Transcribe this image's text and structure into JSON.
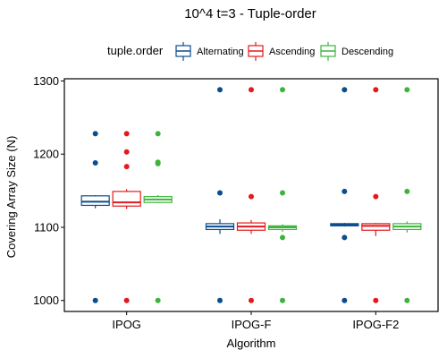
{
  "chart_data": {
    "type": "box",
    "title": "10^4 t=3 - Tuple-order",
    "xlabel": "Algorithm",
    "ylabel": "Covering Array Size (N)",
    "ylim": [
      985,
      1303
    ],
    "yticks": [
      1000,
      1100,
      1200,
      1300
    ],
    "categories": [
      "IPOG",
      "IPOG-F",
      "IPOG-F2"
    ],
    "legend": {
      "title": "tuple.order",
      "position": "top"
    },
    "grid": false,
    "series": [
      {
        "name": "Alternating",
        "color": "#0b4c8c",
        "boxes": [
          {
            "category": "IPOG",
            "whisker_low": 1126,
            "q1": 1130,
            "median": 1135,
            "q3": 1143,
            "whisker_high": 1144,
            "outliers": [
              1228,
              1188,
              1000
            ]
          },
          {
            "category": "IPOG-F",
            "whisker_low": 1091,
            "q1": 1097,
            "median": 1101,
            "q3": 1105,
            "whisker_high": 1111,
            "outliers": [
              1288,
              1147,
              1000
            ]
          },
          {
            "category": "IPOG-F2",
            "whisker_low": 1101,
            "q1": 1102,
            "median": 1103,
            "q3": 1105,
            "whisker_high": 1106,
            "outliers": [
              1288,
              1149,
              1086,
              1000
            ]
          }
        ]
      },
      {
        "name": "Ascending",
        "color": "#e31a1c",
        "boxes": [
          {
            "category": "IPOG",
            "whisker_low": 1125,
            "q1": 1129,
            "median": 1134,
            "q3": 1149,
            "whisker_high": 1152,
            "outliers": [
              1228,
              1203,
              1183,
              1000
            ]
          },
          {
            "category": "IPOG-F",
            "whisker_low": 1091,
            "q1": 1096,
            "median": 1101,
            "q3": 1106,
            "whisker_high": 1110,
            "outliers": [
              1288,
              1142,
              1000
            ]
          },
          {
            "category": "IPOG-F2",
            "whisker_low": 1088,
            "q1": 1096,
            "median": 1102,
            "q3": 1105,
            "whisker_high": 1106,
            "outliers": [
              1288,
              1142,
              1000
            ]
          }
        ]
      },
      {
        "name": "Descending",
        "color": "#3cb43c",
        "boxes": [
          {
            "category": "IPOG",
            "whisker_low": 1133,
            "q1": 1134,
            "median": 1138,
            "q3": 1142,
            "whisker_high": 1144,
            "outliers": [
              1228,
              1189,
              1187,
              1000
            ]
          },
          {
            "category": "IPOG-F",
            "whisker_low": 1094,
            "q1": 1097,
            "median": 1100,
            "q3": 1102,
            "whisker_high": 1104,
            "outliers": [
              1288,
              1147,
              1086,
              1000
            ]
          },
          {
            "category": "IPOG-F2",
            "whisker_low": 1093,
            "q1": 1097,
            "median": 1101,
            "q3": 1105,
            "whisker_high": 1108,
            "outliers": [
              1288,
              1149,
              1000
            ]
          }
        ]
      }
    ]
  }
}
